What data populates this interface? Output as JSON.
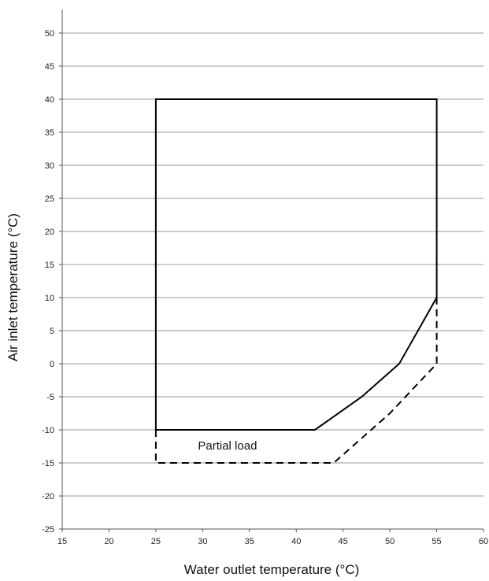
{
  "chart_data": {
    "type": "line",
    "title": "",
    "xlabel": "Water outlet temperature (°C)",
    "ylabel": "Air inlet temperature (°C)",
    "xlim": [
      15,
      60
    ],
    "ylim": [
      -25,
      50
    ],
    "x_ticks": [
      15,
      20,
      25,
      30,
      35,
      40,
      45,
      50,
      55,
      60
    ],
    "y_ticks": [
      -25,
      -20,
      -15,
      -10,
      -5,
      0,
      5,
      10,
      15,
      20,
      25,
      30,
      35,
      40,
      45,
      50
    ],
    "grid": "horizontal",
    "legend": "none",
    "series": [
      {
        "style": "solid",
        "color": "#000000",
        "points": [
          [
            25,
            -10
          ],
          [
            25,
            40
          ],
          [
            55,
            40
          ],
          [
            55,
            10
          ],
          [
            51,
            0
          ],
          [
            47,
            -5
          ],
          [
            42,
            -10
          ],
          [
            25,
            -10
          ]
        ]
      },
      {
        "style": "dashed",
        "color": "#000000",
        "points": [
          [
            25,
            -10
          ],
          [
            25,
            -15
          ],
          [
            44,
            -15
          ],
          [
            50,
            -7.5
          ],
          [
            55,
            0
          ],
          [
            55,
            10
          ]
        ]
      }
    ],
    "annotations": [
      {
        "text": "Partial load",
        "x": 29.5,
        "y": -12.4
      }
    ]
  }
}
